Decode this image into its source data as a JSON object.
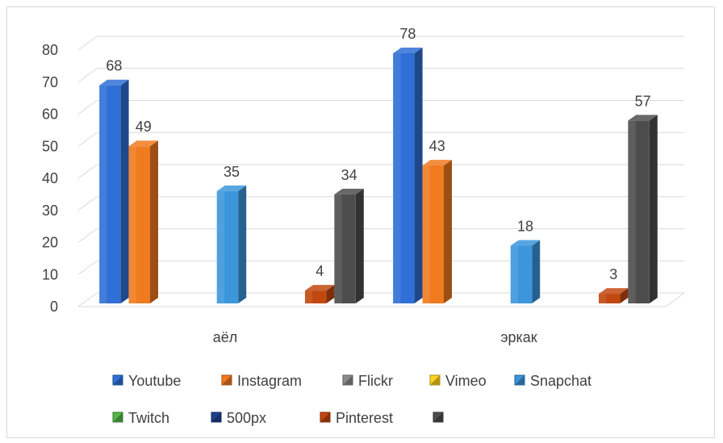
{
  "chart_data": {
    "type": "bar",
    "categories": [
      "аёл",
      "эркак"
    ],
    "series_names": [
      "Youtube",
      "Instagram",
      "Flickr",
      "Vimeo",
      "Snapchat",
      "Twitch",
      "500px",
      "Pinterest",
      ""
    ],
    "series_colors": [
      "#2f6fd6",
      "#f07a1e",
      "#8c8c8c",
      "#ffd21f",
      "#3b96dc",
      "#55b84a",
      "#1f3f8f",
      "#c2470e",
      "#4d4d4d"
    ],
    "series_values": [
      [
        68,
        78
      ],
      [
        49,
        43
      ],
      [
        0,
        0
      ],
      [
        0,
        0
      ],
      [
        35,
        18
      ],
      [
        0,
        0
      ],
      [
        0,
        0
      ],
      [
        4,
        3
      ],
      [
        34,
        57
      ]
    ],
    "ylim": [
      0,
      80
    ],
    "yticks": [
      0,
      10,
      20,
      30,
      40,
      50,
      60,
      70,
      80
    ],
    "grid": true,
    "legend_position": "bottom",
    "bars_3d": true
  }
}
